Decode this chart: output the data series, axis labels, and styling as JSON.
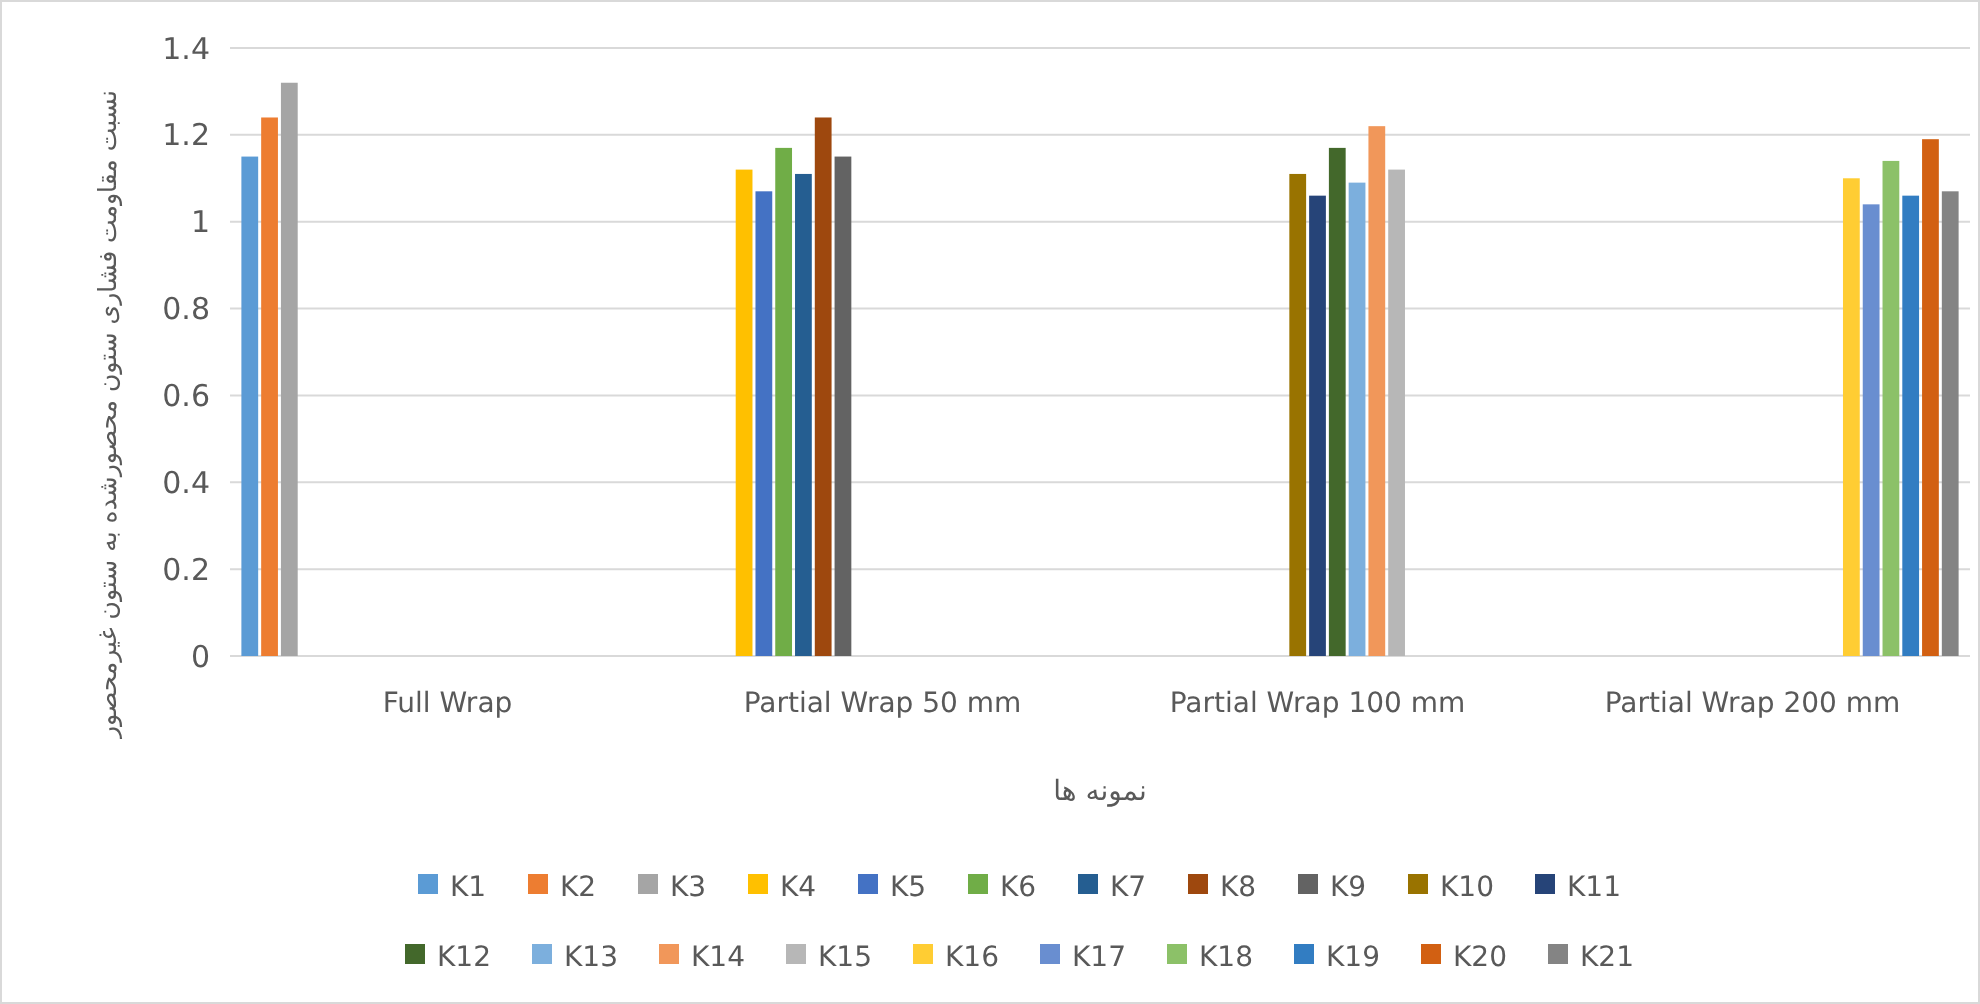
{
  "chart_data": {
    "type": "bar",
    "xlabel": "نمونه ها",
    "ylabel": "نسبت مقاومت فشاری ستون محصورشده به ستون غیرمحصور",
    "categories": [
      "Full Wrap",
      "Partial Wrap 50 mm",
      "Partial Wrap 100 mm",
      "Partial Wrap 200 mm"
    ],
    "ylim": [
      0,
      1.4
    ],
    "yticks": [
      0,
      0.2,
      0.4,
      0.6,
      0.8,
      1,
      1.2,
      1.4
    ],
    "grid": "y",
    "legend": "bottom",
    "series": [
      {
        "name": "K1",
        "color": "#5b9bd5",
        "values": [
          1.15,
          null,
          null,
          null
        ]
      },
      {
        "name": "K2",
        "color": "#ed7d31",
        "values": [
          1.24,
          null,
          null,
          null
        ]
      },
      {
        "name": "K3",
        "color": "#a5a5a5",
        "values": [
          1.32,
          null,
          null,
          null
        ]
      },
      {
        "name": "K4",
        "color": "#ffc000",
        "values": [
          null,
          1.12,
          null,
          null
        ]
      },
      {
        "name": "K5",
        "color": "#4472c4",
        "values": [
          null,
          1.07,
          null,
          null
        ]
      },
      {
        "name": "K6",
        "color": "#70ad47",
        "values": [
          null,
          1.17,
          null,
          null
        ]
      },
      {
        "name": "K7",
        "color": "#255e91",
        "values": [
          null,
          1.11,
          null,
          null
        ]
      },
      {
        "name": "K8",
        "color": "#9e480e",
        "values": [
          null,
          1.24,
          null,
          null
        ]
      },
      {
        "name": "K9",
        "color": "#636363",
        "values": [
          null,
          1.15,
          null,
          null
        ]
      },
      {
        "name": "K10",
        "color": "#997300",
        "values": [
          null,
          null,
          1.11,
          null
        ]
      },
      {
        "name": "K11",
        "color": "#264478",
        "values": [
          null,
          null,
          1.06,
          null
        ]
      },
      {
        "name": "K12",
        "color": "#43682b",
        "values": [
          null,
          null,
          1.17,
          null
        ]
      },
      {
        "name": "K13",
        "color": "#7cafdd",
        "values": [
          null,
          null,
          1.09,
          null
        ]
      },
      {
        "name": "K14",
        "color": "#f1975a",
        "values": [
          null,
          null,
          1.22,
          null
        ]
      },
      {
        "name": "K15",
        "color": "#b7b7b7",
        "values": [
          null,
          null,
          1.12,
          null
        ]
      },
      {
        "name": "K16",
        "color": "#ffcd33",
        "values": [
          null,
          null,
          null,
          1.1
        ]
      },
      {
        "name": "K17",
        "color": "#698ed0",
        "values": [
          null,
          null,
          null,
          1.04
        ]
      },
      {
        "name": "K18",
        "color": "#8cc168",
        "values": [
          null,
          null,
          null,
          1.14
        ]
      },
      {
        "name": "K19",
        "color": "#327dc2",
        "values": [
          null,
          null,
          null,
          1.06
        ]
      },
      {
        "name": "K20",
        "color": "#d26012",
        "values": [
          null,
          null,
          null,
          1.19
        ]
      },
      {
        "name": "K21",
        "color": "#848484",
        "values": [
          null,
          null,
          null,
          1.07
        ]
      }
    ]
  }
}
